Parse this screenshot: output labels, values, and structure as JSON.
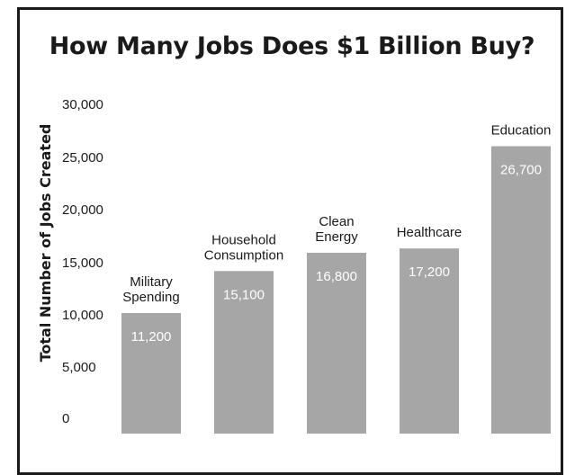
{
  "chart_data": {
    "type": "bar",
    "title": "How Many Jobs Does $1 Billion Buy?",
    "ylabel": "Total Number of Jobs Created",
    "xlabel": "",
    "ylim": [
      0,
      30000
    ],
    "yticks": [
      0,
      5000,
      10000,
      15000,
      20000,
      25000,
      30000
    ],
    "ytick_labels": [
      "0",
      "5,000",
      "10,000",
      "15,000",
      "20,000",
      "25,000",
      "30,000"
    ],
    "categories": [
      [
        "Military",
        "Spending"
      ],
      [
        "Household",
        "Consumption"
      ],
      [
        "Clean",
        "Energy"
      ],
      [
        "Healthcare"
      ],
      [
        "Education"
      ]
    ],
    "values": [
      11200,
      15100,
      16800,
      17200,
      26700
    ],
    "value_labels": [
      "11,200",
      "15,100",
      "16,800",
      "17,200",
      "26,700"
    ],
    "bar_color": "#a6a6a6",
    "grid": false,
    "legend": "none"
  }
}
